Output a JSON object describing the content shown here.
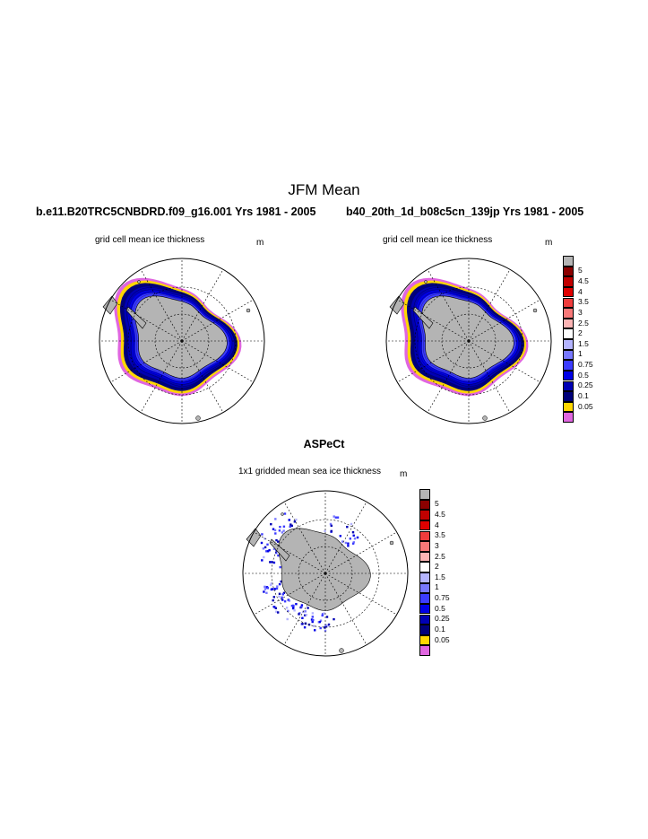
{
  "figure": {
    "title": "JFM Mean",
    "units": "m",
    "colorbar_labels": [
      "5",
      "4.5",
      "4",
      "3.5",
      "3",
      "2.5",
      "2",
      "1.5",
      "1",
      "0.75",
      "0.5",
      "0.25",
      "0.1",
      "0.05"
    ],
    "colors": {
      "land": "#b4b4b4",
      "c5": "#8b0000",
      "c45": "#c00000",
      "c4": "#e00000",
      "c35": "#f03c3c",
      "c3": "#f87878",
      "c25": "#fcb4b4",
      "c2": "#ffffff",
      "c15": "#b4b4ff",
      "c1": "#7878ff",
      "c075": "#3c3cff",
      "c05": "#0000e6",
      "c025": "#0000b4",
      "c01": "#00007a",
      "c005": "#ffd700",
      "c0": "#e066e0"
    }
  },
  "panels": {
    "left": {
      "case_title": "b.e11.B20TRC5CNBDRD.f09_g16.001  Yrs 1981 - 2005",
      "subtitle": "grid cell mean ice thickness",
      "units": "m"
    },
    "right": {
      "case_title": "b40_20th_1d_b08c5cn_139jp  Yrs 1981 - 2005",
      "subtitle": "grid cell mean ice thickness",
      "units": "m"
    },
    "bottom": {
      "title": "ASPeCt",
      "subtitle": "1x1 gridded mean sea ice thickness",
      "units": "m"
    }
  }
}
